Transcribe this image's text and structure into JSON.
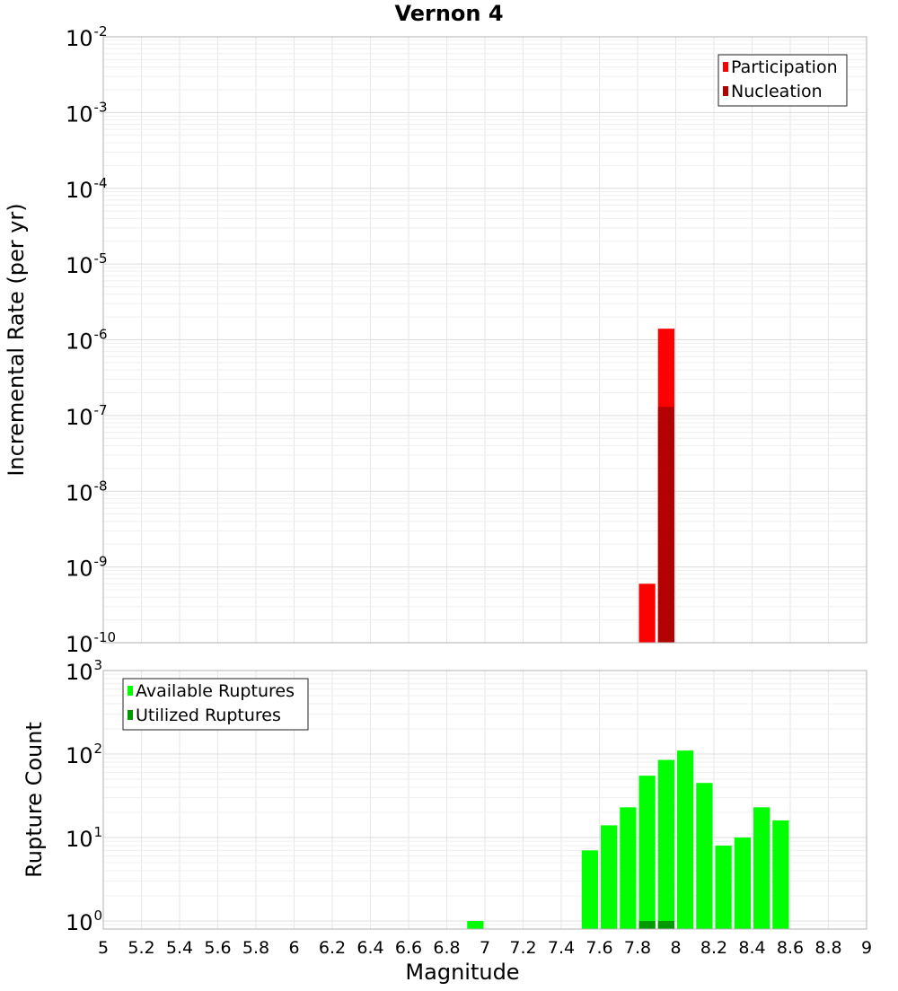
{
  "chart_data": [
    {
      "type": "bar",
      "title": "Vernon 4",
      "ylabel": "Incremental Rate (per yr)",
      "xlabel": "",
      "xlim": [
        5,
        9
      ],
      "ylim": [
        1e-10,
        0.01
      ],
      "y_scale": "log",
      "y_tick_exponents": [
        "-2",
        "-3",
        "-4",
        "-5",
        "-6",
        "-7",
        "-8",
        "-9",
        "-10"
      ],
      "y_tick_base": "10",
      "grid": true,
      "legend": "top-right",
      "series": [
        {
          "name": "Participation",
          "color": "#ff0000",
          "x": [
            7.85,
            7.95
          ],
          "values": [
            6e-10,
            1.4e-06
          ]
        },
        {
          "name": "Nucleation",
          "color": "#b30000",
          "x": [
            7.95
          ],
          "values": [
            1.3e-07
          ]
        }
      ]
    },
    {
      "type": "bar",
      "title": "",
      "ylabel": "Rupture Count",
      "xlabel": "Magnitude",
      "xlim": [
        5,
        9
      ],
      "ylim": [
        0.8,
        1000
      ],
      "y_scale": "log",
      "y_tick_exponents": [
        "3",
        "2",
        "1",
        "0"
      ],
      "y_tick_base": "10",
      "x_ticks": [
        "5",
        "5.2",
        "5.4",
        "5.6",
        "5.8",
        "6",
        "6.2",
        "6.4",
        "6.6",
        "6.8",
        "7",
        "7.2",
        "7.4",
        "7.6",
        "7.8",
        "8",
        "8.2",
        "8.4",
        "8.6",
        "8.8",
        "9"
      ],
      "grid": true,
      "legend": "top-left",
      "series": [
        {
          "name": "Available Ruptures",
          "color": "#00ff00",
          "x": [
            6.95,
            7.55,
            7.65,
            7.75,
            7.85,
            7.95,
            8.05,
            8.15,
            8.25,
            8.35,
            8.45,
            8.55
          ],
          "values": [
            1,
            7,
            14,
            23,
            55,
            85,
            110,
            45,
            8,
            10,
            23,
            16
          ]
        },
        {
          "name": "Utilized Ruptures",
          "color": "#009900",
          "x": [
            7.85,
            7.95
          ],
          "values": [
            1,
            1
          ]
        }
      ]
    }
  ]
}
